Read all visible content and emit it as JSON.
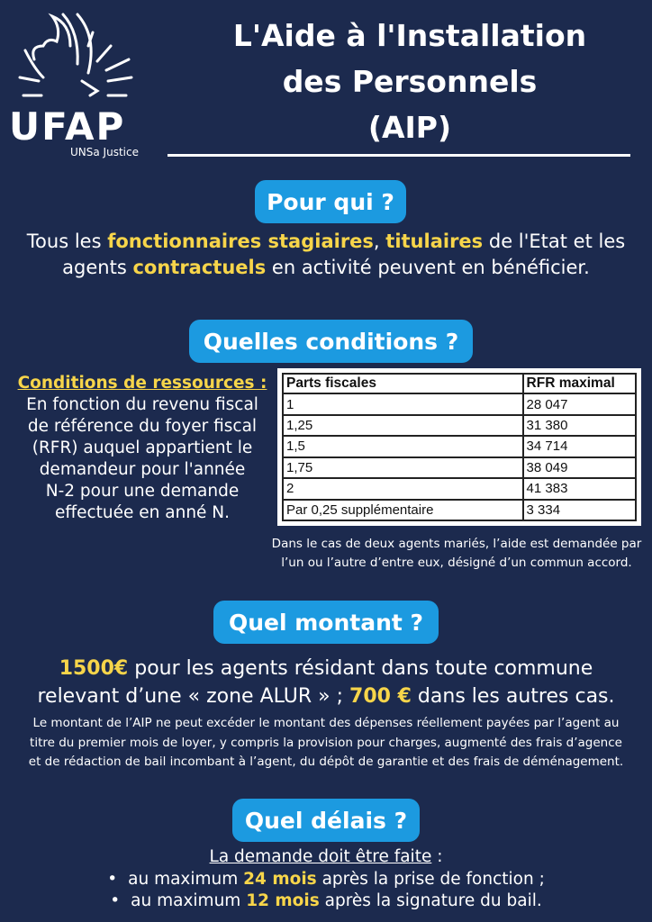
{
  "logo": {
    "name": "UFAP",
    "sub": "UNSa Justice"
  },
  "title": [
    "L'Aide à l'Installation",
    "des Personnels",
    "(AIP)"
  ],
  "pour_qui": {
    "heading": "Pour qui ?",
    "line1": [
      {
        "t": "Tous les "
      },
      {
        "t": "fonctionnaires stagiaires",
        "h": true
      },
      {
        "t": ", "
      },
      {
        "t": "titulaires",
        "h": true
      },
      {
        "t": " de l'Etat et les"
      }
    ],
    "line2": [
      {
        "t": "agents "
      },
      {
        "t": "contractuels",
        "h": true
      },
      {
        "t": " en activité peuvent en bénéficier."
      }
    ]
  },
  "conditions": {
    "heading": "Quelles conditions ?",
    "sub": "Conditions de ressources :",
    "text": [
      "En fonction du revenu fiscal",
      "de référence du foyer fiscal",
      "(RFR) auquel appartient le",
      "demandeur pour l'année",
      "N-2 pour une demande",
      "effectuée en anné N."
    ],
    "table": {
      "headers": [
        "Parts fiscales",
        "RFR maximal"
      ],
      "rows": [
        [
          "1",
          "28 047"
        ],
        [
          "1,25",
          "31 380"
        ],
        [
          "1,5",
          "34 714"
        ],
        [
          "1,75",
          "38 049"
        ],
        [
          "2",
          "41 383"
        ],
        [
          "Par 0,25 supplémentaire",
          "3 334"
        ]
      ]
    },
    "note": [
      "Dans le cas de deux agents mariés, l’aide est demandée par",
      "l’un ou l’autre d’entre eux, désigné d’un commun accord."
    ]
  },
  "montant": {
    "heading": "Quel montant ?",
    "line1": [
      {
        "t": "1500€",
        "h": true
      },
      {
        "t": " pour les agents résidant dans toute commune"
      }
    ],
    "line2": [
      {
        "t": "relevant d’une « zone ALUR  » ; "
      },
      {
        "t": "700 €",
        "h": true
      },
      {
        "t": " dans les autres cas."
      }
    ],
    "small": [
      "Le montant de l’AIP ne peut excéder le montant des dépenses réellement payées par l’agent au",
      "titre du premier mois de loyer, y compris la provision pour charges, augmenté des frais d’agence",
      "et de rédaction de bail incombant à l’agent, du dépôt de garantie et des frais de déménagement."
    ]
  },
  "delais": {
    "heading": "Quel délais ?",
    "intro": "La demande doit être faite",
    "intro_after": " :",
    "items": [
      [
        {
          "t": "au maximum "
        },
        {
          "t": "24 mois",
          "h": true
        },
        {
          "t": " après la prise de fonction ;"
        }
      ],
      [
        {
          "t": "au maximum "
        },
        {
          "t": "12 mois",
          "h": true
        },
        {
          "t": " après la signature du bail."
        }
      ]
    ]
  }
}
